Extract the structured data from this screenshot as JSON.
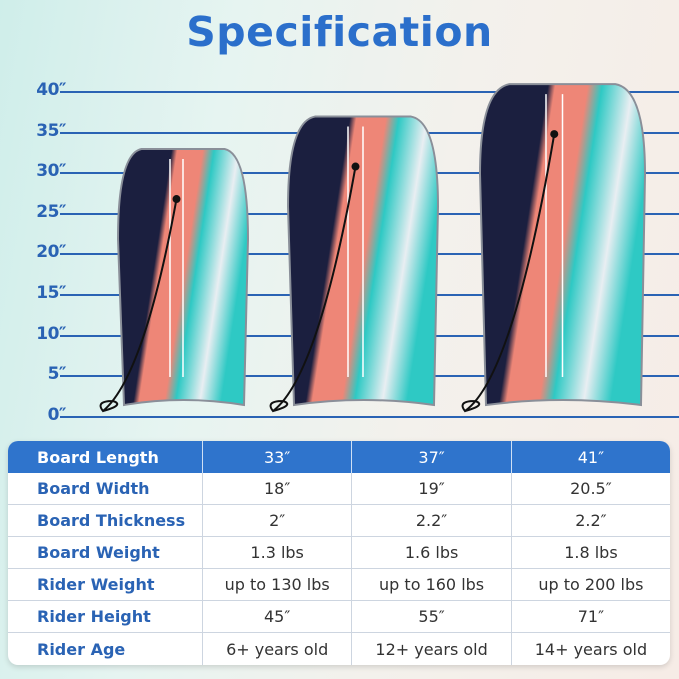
{
  "title": "Specification",
  "scale_ticks": [
    "40″",
    "35″",
    "30″",
    "25″",
    "20″",
    "15″",
    "10″",
    "5″",
    "0″"
  ],
  "boards": [
    {
      "length_in": 33
    },
    {
      "length_in": 37
    },
    {
      "length_in": 41
    }
  ],
  "colors": {
    "accent": "#2f74cc",
    "board_navy": "#1b1f3f",
    "board_coral": "#ee8677",
    "board_teal": "#2ec9c4"
  },
  "table": {
    "rows": [
      {
        "label": "Board Length",
        "values": [
          "33″",
          "37″",
          "41″"
        ]
      },
      {
        "label": "Board Width",
        "values": [
          "18″",
          "19″",
          "20.5″"
        ]
      },
      {
        "label": "Board Thickness",
        "values": [
          "2″",
          "2.2″",
          "2.2″"
        ]
      },
      {
        "label": "Board Weight",
        "values": [
          "1.3 lbs",
          "1.6 lbs",
          "1.8 lbs"
        ]
      },
      {
        "label": "Rider Weight",
        "values": [
          "up to 130 lbs",
          "up to 160 lbs",
          "up to 200 lbs"
        ]
      },
      {
        "label": "Rider Height",
        "values": [
          "45″",
          "55″",
          "71″"
        ]
      },
      {
        "label": "Rider Age",
        "values": [
          "6+ years old",
          "12+ years old",
          "14+ years old"
        ]
      }
    ]
  }
}
